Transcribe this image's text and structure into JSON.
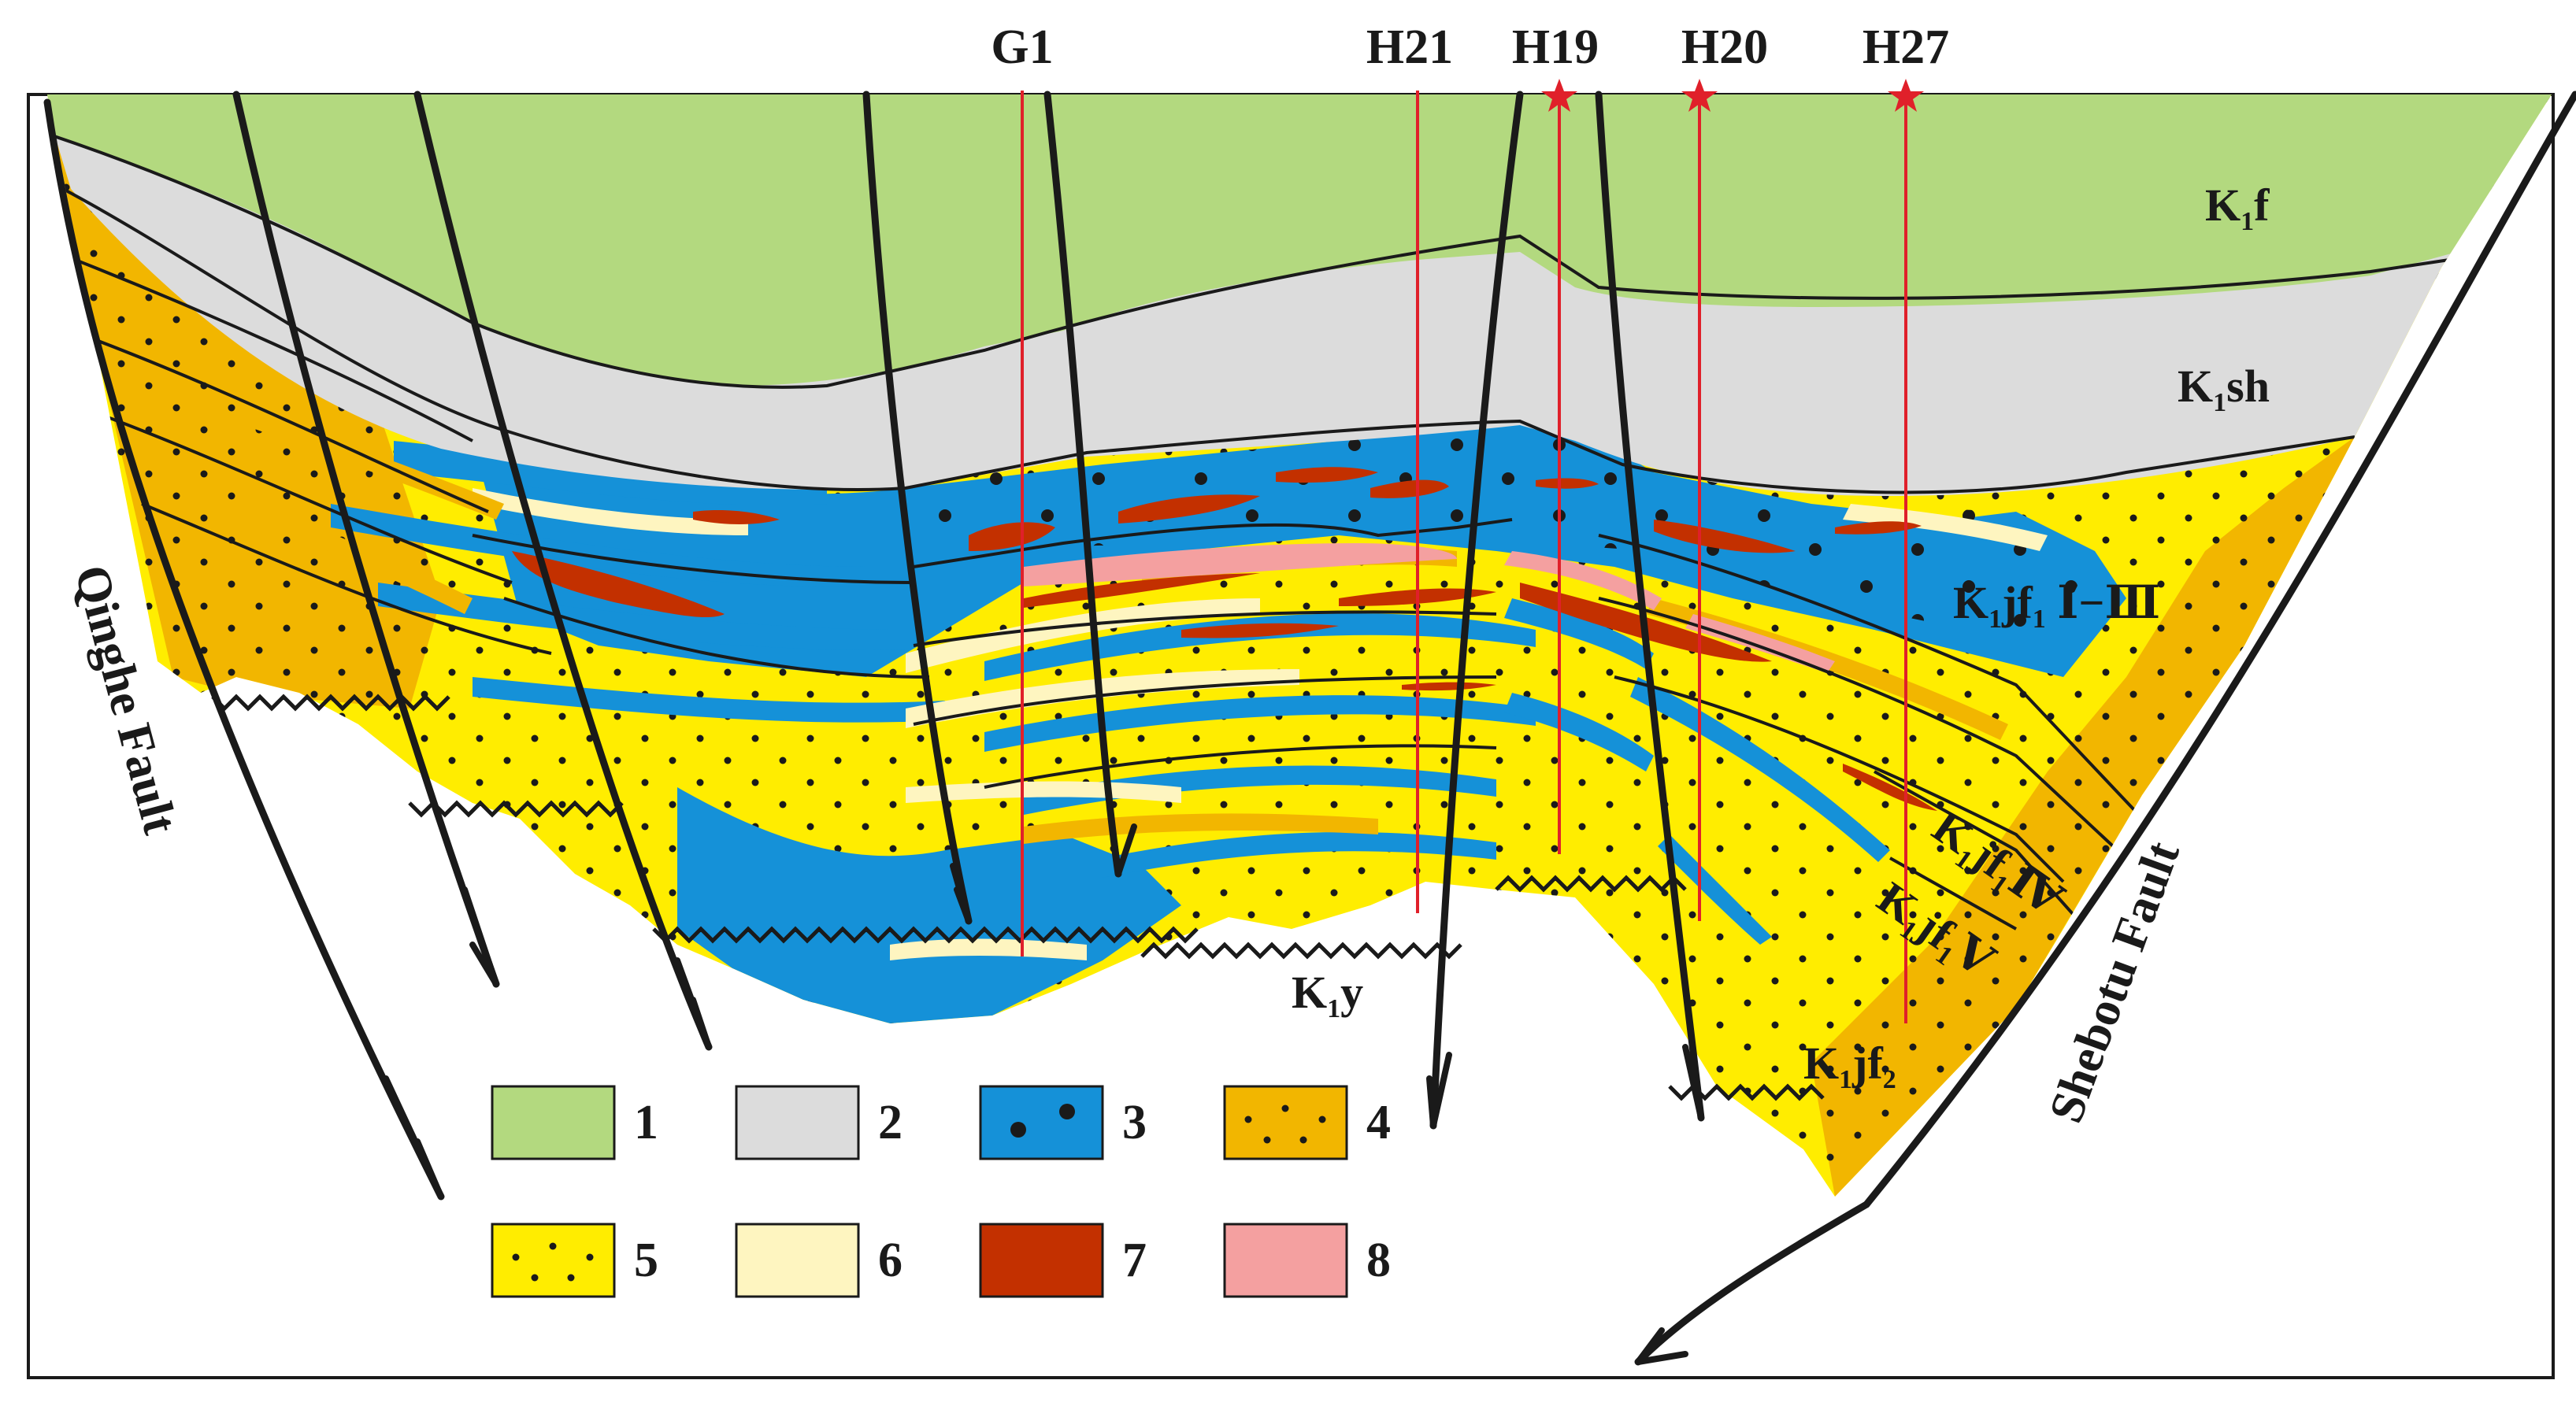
{
  "wells": [
    {
      "id": "G1",
      "label": "G1",
      "producing": false
    },
    {
      "id": "H21",
      "label": "H21",
      "producing": false
    },
    {
      "id": "H19",
      "label": "H19",
      "producing": true
    },
    {
      "id": "H20",
      "label": "H20",
      "producing": true
    },
    {
      "id": "H27",
      "label": "H27",
      "producing": true
    }
  ],
  "faults": {
    "left": "Qinghe Fault",
    "right": "Shebotu Fault"
  },
  "formations": {
    "k1f": {
      "base": "K",
      "sub": "1",
      "suffix": "f"
    },
    "k1sh": {
      "base": "K",
      "sub": "1",
      "suffix": "sh"
    },
    "k1jf1_1_3": {
      "base": "K",
      "sub": "1",
      "mid": "jf",
      "sub2": "1",
      "suffix": " Ⅰ−Ⅲ"
    },
    "k1jf1_4": {
      "base": "K",
      "sub": "1",
      "mid": "jf",
      "sub2": "1",
      "suffix": "Ⅳ"
    },
    "k1jf1_5": {
      "base": "K",
      "sub": "1",
      "mid": "jf",
      "sub2": "1",
      "suffix": "Ⅴ"
    },
    "k1jf2": {
      "base": "K",
      "sub": "1",
      "mid": "jf",
      "sub2": "2",
      "suffix": ""
    },
    "k1y": {
      "base": "K",
      "sub": "1",
      "suffix": "y"
    }
  },
  "legend": [
    {
      "num": "1",
      "color": "#b3d97f",
      "pattern": "none"
    },
    {
      "num": "2",
      "color": "#dcdcdc",
      "pattern": "none"
    },
    {
      "num": "3",
      "color": "#1591d8",
      "pattern": "large-dots"
    },
    {
      "num": "4",
      "color": "#f2b600",
      "pattern": "dots"
    },
    {
      "num": "5",
      "color": "#ffed00",
      "pattern": "dots"
    },
    {
      "num": "6",
      "color": "#fef5c0",
      "pattern": "none"
    },
    {
      "num": "7",
      "color": "#c33000",
      "pattern": "none"
    },
    {
      "num": "8",
      "color": "#f4a0a0",
      "pattern": "none"
    }
  ],
  "colors": {
    "green": "#b3d97f",
    "grey": "#dcdcdc",
    "blue": "#1591d8",
    "orange": "#f2b600",
    "yellow": "#ffed00",
    "cream": "#fef5c0",
    "red": "#c33000",
    "pink": "#f4a0a0",
    "well_line": "#e0202a",
    "star": "#e0202a"
  }
}
